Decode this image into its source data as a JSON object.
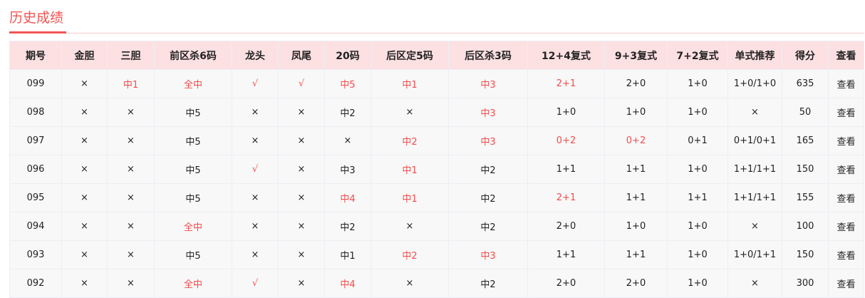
{
  "title": "历史成绩",
  "accent": "#f25555",
  "columns": [
    "期号",
    "金胆",
    "三胆",
    "前区杀6码",
    "龙头",
    "凤尾",
    "20码",
    "后区定5码",
    "后区杀3码",
    "12+4复式",
    "9+3复式",
    "7+2复式",
    "单式推荐",
    "得分",
    "查看"
  ],
  "view_label": "查看",
  "rows": [
    {
      "cells": [
        [
          "099",
          0
        ],
        [
          "×",
          0
        ],
        [
          "中1",
          1
        ],
        [
          "全中",
          1
        ],
        [
          "√",
          1
        ],
        [
          "√",
          1
        ],
        [
          "中5",
          1
        ],
        [
          "中1",
          1
        ],
        [
          "中3",
          1
        ],
        [
          "2+1",
          1
        ],
        [
          "2+0",
          0
        ],
        [
          "1+0",
          0
        ],
        [
          "1+0/1+0",
          0
        ],
        [
          "635",
          0
        ]
      ]
    },
    {
      "cells": [
        [
          "098",
          0
        ],
        [
          "×",
          0
        ],
        [
          "×",
          0
        ],
        [
          "中5",
          0
        ],
        [
          "×",
          0
        ],
        [
          "×",
          0
        ],
        [
          "中2",
          0
        ],
        [
          "×",
          0
        ],
        [
          "中3",
          1
        ],
        [
          "1+0",
          0
        ],
        [
          "1+0",
          0
        ],
        [
          "1+0",
          0
        ],
        [
          "×",
          0
        ],
        [
          "50",
          0
        ]
      ]
    },
    {
      "cells": [
        [
          "097",
          0
        ],
        [
          "×",
          0
        ],
        [
          "×",
          0
        ],
        [
          "中5",
          0
        ],
        [
          "×",
          0
        ],
        [
          "×",
          0
        ],
        [
          "×",
          0
        ],
        [
          "中2",
          1
        ],
        [
          "中3",
          1
        ],
        [
          "0+2",
          1
        ],
        [
          "0+2",
          1
        ],
        [
          "0+1",
          0
        ],
        [
          "0+1/0+1",
          0
        ],
        [
          "165",
          0
        ]
      ]
    },
    {
      "cells": [
        [
          "096",
          0
        ],
        [
          "×",
          0
        ],
        [
          "×",
          0
        ],
        [
          "中5",
          0
        ],
        [
          "√",
          1
        ],
        [
          "×",
          0
        ],
        [
          "中3",
          0
        ],
        [
          "中1",
          1
        ],
        [
          "中2",
          0
        ],
        [
          "1+1",
          0
        ],
        [
          "1+1",
          0
        ],
        [
          "1+0",
          0
        ],
        [
          "1+1/1+1",
          0
        ],
        [
          "150",
          0
        ]
      ]
    },
    {
      "cells": [
        [
          "095",
          0
        ],
        [
          "×",
          0
        ],
        [
          "×",
          0
        ],
        [
          "中5",
          0
        ],
        [
          "×",
          0
        ],
        [
          "×",
          0
        ],
        [
          "中4",
          1
        ],
        [
          "中1",
          1
        ],
        [
          "中2",
          0
        ],
        [
          "2+1",
          1
        ],
        [
          "1+1",
          0
        ],
        [
          "1+1",
          0
        ],
        [
          "1+1/1+1",
          0
        ],
        [
          "155",
          0
        ]
      ]
    },
    {
      "cells": [
        [
          "094",
          0
        ],
        [
          "×",
          0
        ],
        [
          "×",
          0
        ],
        [
          "全中",
          1
        ],
        [
          "×",
          0
        ],
        [
          "×",
          0
        ],
        [
          "中2",
          0
        ],
        [
          "×",
          0
        ],
        [
          "中2",
          0
        ],
        [
          "2+0",
          0
        ],
        [
          "1+0",
          0
        ],
        [
          "1+0",
          0
        ],
        [
          "×",
          0
        ],
        [
          "100",
          0
        ]
      ]
    },
    {
      "cells": [
        [
          "093",
          0
        ],
        [
          "×",
          0
        ],
        [
          "×",
          0
        ],
        [
          "中5",
          0
        ],
        [
          "×",
          0
        ],
        [
          "×",
          0
        ],
        [
          "中1",
          0
        ],
        [
          "中2",
          1
        ],
        [
          "中3",
          1
        ],
        [
          "1+1",
          0
        ],
        [
          "1+1",
          0
        ],
        [
          "1+0",
          0
        ],
        [
          "1+0/1+1",
          0
        ],
        [
          "150",
          0
        ]
      ]
    },
    {
      "cells": [
        [
          "092",
          0
        ],
        [
          "×",
          0
        ],
        [
          "×",
          0
        ],
        [
          "全中",
          1
        ],
        [
          "√",
          1
        ],
        [
          "×",
          0
        ],
        [
          "中4",
          1
        ],
        [
          "×",
          0
        ],
        [
          "中2",
          0
        ],
        [
          "2+0",
          0
        ],
        [
          "2+0",
          0
        ],
        [
          "1+0",
          0
        ],
        [
          "×",
          0
        ],
        [
          "300",
          0
        ]
      ]
    }
  ]
}
